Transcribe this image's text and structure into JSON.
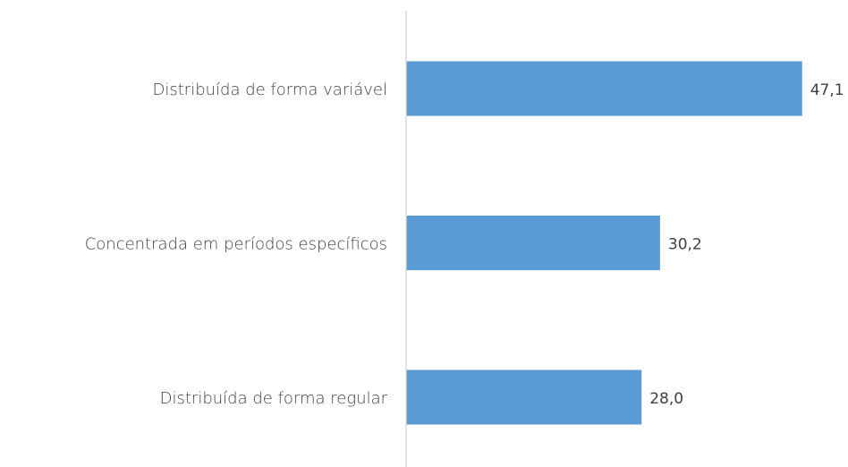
{
  "chart_data": {
    "type": "barh",
    "categories": [
      "Distribuída de forma variável",
      "Concentrada em períodos específicos",
      "Distribuída de forma regular"
    ],
    "values": [
      47.1,
      30.2,
      28.0
    ],
    "value_labels": [
      "47,1",
      "30,2",
      "28,0"
    ],
    "color": "#5b9bd5",
    "xlim": [
      0,
      50
    ]
  }
}
